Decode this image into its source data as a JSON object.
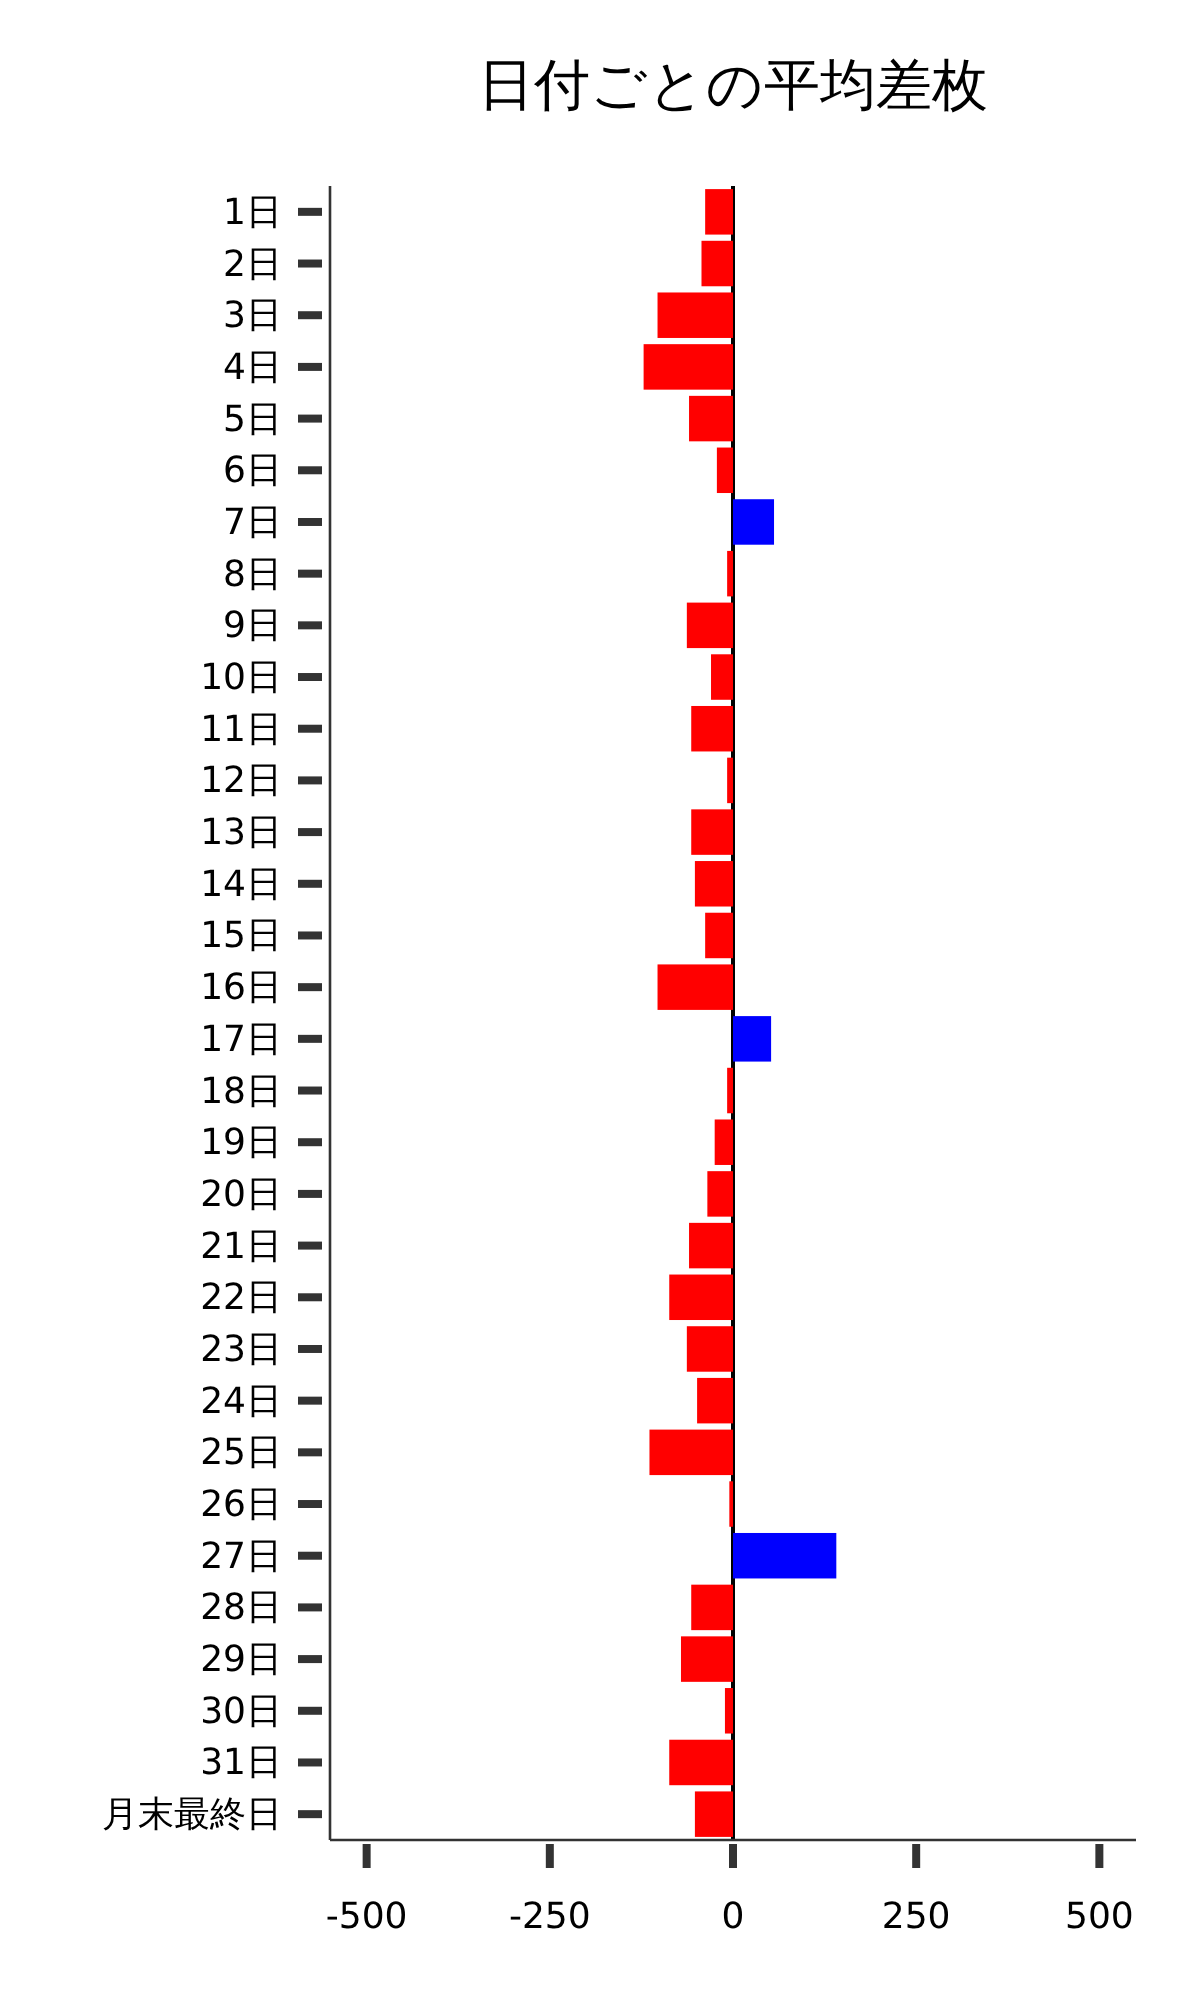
{
  "chart_data": {
    "type": "bar",
    "orientation": "horizontal",
    "title": "日付ごとの平均差枚",
    "categories": [
      "1日",
      "2日",
      "3日",
      "4日",
      "5日",
      "6日",
      "7日",
      "8日",
      "9日",
      "10日",
      "11日",
      "12日",
      "13日",
      "14日",
      "15日",
      "16日",
      "17日",
      "18日",
      "19日",
      "20日",
      "21日",
      "22日",
      "23日",
      "24日",
      "25日",
      "26日",
      "27日",
      "28日",
      "29日",
      "30日",
      "31日",
      "月末最終日"
    ],
    "values": [
      -38,
      -43,
      -103,
      -122,
      -60,
      -22,
      56,
      -8,
      -63,
      -30,
      -57,
      -8,
      -57,
      -52,
      -38,
      -103,
      52,
      -8,
      -25,
      -35,
      -60,
      -87,
      -63,
      -49,
      -114,
      -5,
      141,
      -57,
      -71,
      -11,
      -87,
      -52
    ],
    "colors": [
      "#ff0000",
      "#ff0000",
      "#ff0000",
      "#ff0000",
      "#ff0000",
      "#ff0000",
      "#0000ff",
      "#ff0000",
      "#ff0000",
      "#ff0000",
      "#ff0000",
      "#ff0000",
      "#ff0000",
      "#ff0000",
      "#ff0000",
      "#ff0000",
      "#0000ff",
      "#ff0000",
      "#ff0000",
      "#ff0000",
      "#ff0000",
      "#ff0000",
      "#ff0000",
      "#ff0000",
      "#ff0000",
      "#ff0000",
      "#0000ff",
      "#ff0000",
      "#ff0000",
      "#ff0000",
      "#ff0000",
      "#ff0000"
    ],
    "xlim": [
      -550,
      550
    ],
    "xticks": [
      -500,
      -250,
      0,
      250,
      500
    ],
    "ref_lines": [
      {
        "axis": "x",
        "value": 0,
        "color": "#000000"
      }
    ]
  }
}
